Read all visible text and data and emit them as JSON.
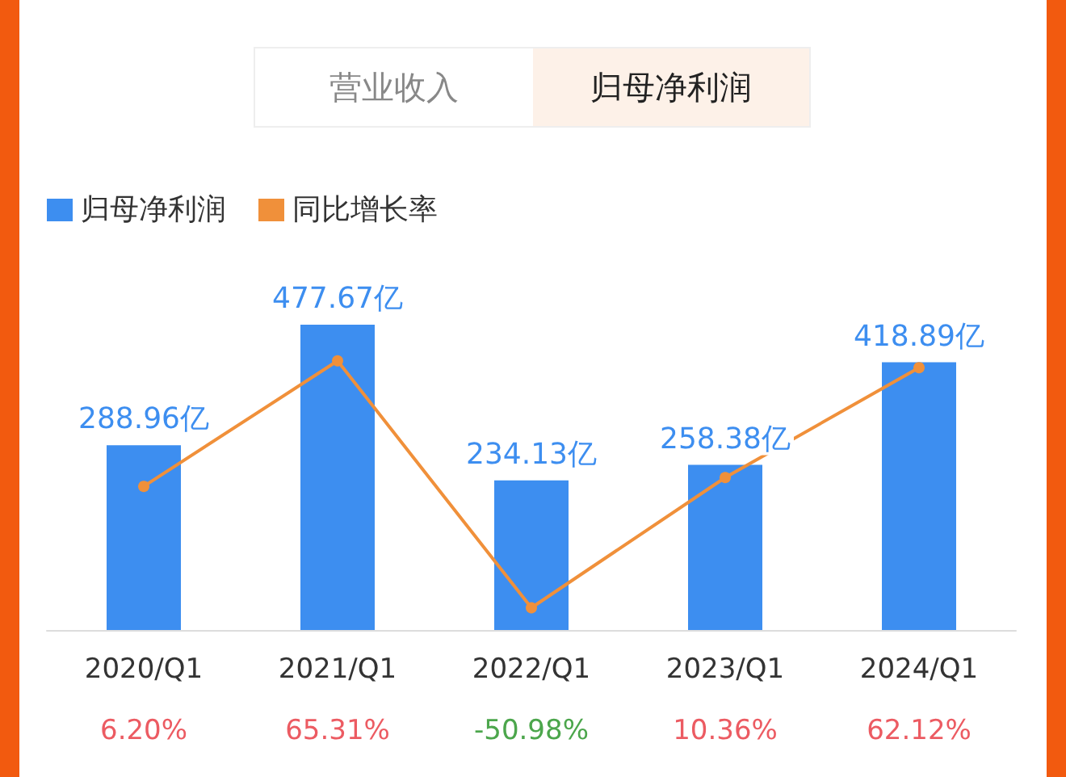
{
  "chart_data": {
    "type": "bar",
    "annotations": [
      "营业收入",
      "归母净利润"
    ],
    "categories": [
      "2020/Q1",
      "2021/Q1",
      "2022/Q1",
      "2023/Q1",
      "2024/Q1"
    ],
    "legend": "top left",
    "series": [
      {
        "name": "归母净利润",
        "color": "#3d8ef0",
        "values": [
          288.96,
          477.67,
          234.13,
          258.38,
          418.89
        ],
        "value_labels": [
          "288.96亿",
          "477.67亿",
          "234.13亿",
          "258.38亿",
          "418.89亿"
        ]
      },
      {
        "name": "同比增长率",
        "type": "line",
        "axis": "y2",
        "color": "#f0903a",
        "marker": "circle",
        "values": [
          6.2,
          65.31,
          -50.98,
          10.36,
          62.12
        ],
        "value_labels": [
          "6.20%",
          "65.31%",
          "-50.98%",
          "10.36%",
          "62.12%"
        ]
      }
    ]
  }
}
